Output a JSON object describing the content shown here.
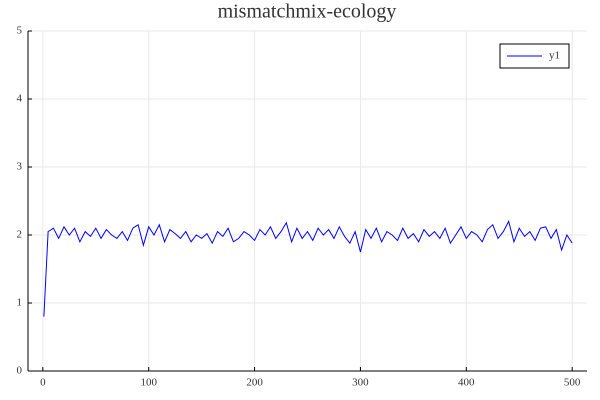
{
  "chart_data": {
    "type": "line",
    "title": "mismatchmix-ecology",
    "x": [
      1,
      5,
      10,
      15,
      20,
      25,
      30,
      35,
      40,
      45,
      50,
      55,
      60,
      65,
      70,
      75,
      80,
      85,
      90,
      95,
      100,
      105,
      110,
      115,
      120,
      125,
      130,
      135,
      140,
      145,
      150,
      155,
      160,
      165,
      170,
      175,
      180,
      185,
      190,
      195,
      200,
      205,
      210,
      215,
      220,
      225,
      230,
      235,
      240,
      245,
      250,
      255,
      260,
      265,
      270,
      275,
      280,
      285,
      290,
      295,
      300,
      305,
      310,
      315,
      320,
      325,
      330,
      335,
      340,
      345,
      350,
      355,
      360,
      365,
      370,
      375,
      380,
      385,
      390,
      395,
      400,
      405,
      410,
      415,
      420,
      425,
      430,
      435,
      440,
      445,
      450,
      455,
      460,
      465,
      470,
      475,
      480,
      485,
      490,
      495,
      500
    ],
    "series": [
      {
        "name": "y1",
        "color": "#0000ff",
        "values": [
          0.8,
          2.05,
          2.1,
          1.95,
          2.12,
          2.0,
          2.1,
          1.9,
          2.05,
          1.98,
          2.1,
          1.95,
          2.08,
          2.0,
          1.95,
          2.05,
          1.92,
          2.1,
          2.15,
          1.85,
          2.12,
          2.0,
          2.15,
          1.9,
          2.08,
          2.02,
          1.95,
          2.05,
          1.9,
          2.0,
          1.95,
          2.02,
          1.88,
          2.05,
          1.98,
          2.1,
          1.9,
          1.95,
          2.05,
          2.0,
          1.92,
          2.08,
          2.0,
          2.12,
          1.95,
          2.05,
          2.18,
          1.9,
          2.1,
          1.95,
          2.05,
          1.92,
          2.1,
          2.0,
          2.08,
          1.95,
          2.12,
          1.98,
          1.88,
          2.05,
          1.75,
          2.08,
          1.95,
          2.1,
          1.9,
          2.05,
          2.0,
          1.92,
          2.1,
          1.95,
          2.02,
          1.9,
          2.08,
          1.98,
          2.05,
          1.95,
          2.1,
          1.88,
          2.0,
          2.12,
          1.95,
          2.05,
          2.0,
          1.9,
          2.08,
          2.15,
          1.95,
          2.05,
          2.2,
          1.9,
          2.1,
          1.98,
          2.05,
          1.92,
          2.1,
          2.12,
          1.95,
          2.08,
          1.78,
          2.0,
          1.88
        ]
      }
    ],
    "xlim": [
      -14,
      514
    ],
    "ylim": [
      0,
      5
    ],
    "xticks": [
      0,
      100,
      200,
      300,
      400,
      500
    ],
    "yticks": [
      0,
      1,
      2,
      3,
      4,
      5
    ],
    "grid": true,
    "legend": "top-right"
  }
}
